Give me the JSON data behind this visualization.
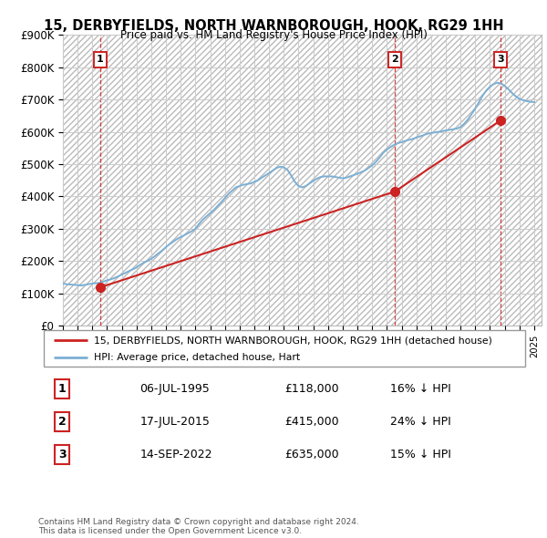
{
  "title": "15, DERBYFIELDS, NORTH WARNBOROUGH, HOOK, RG29 1HH",
  "subtitle": "Price paid vs. HM Land Registry's House Price Index (HPI)",
  "ylim": [
    0,
    900000
  ],
  "yticks": [
    0,
    100000,
    200000,
    300000,
    400000,
    500000,
    600000,
    700000,
    800000,
    900000
  ],
  "ytick_labels": [
    "£0",
    "£100K",
    "£200K",
    "£300K",
    "£400K",
    "£500K",
    "£600K",
    "£700K",
    "£800K",
    "£900K"
  ],
  "xlim_start": 1993.0,
  "xlim_end": 2025.5,
  "sale_dates": [
    1995.51,
    2015.54,
    2022.71
  ],
  "sale_prices": [
    118000,
    415000,
    635000
  ],
  "sale_labels": [
    "1",
    "2",
    "3"
  ],
  "hpi_color": "#7bafd4",
  "price_color": "#cc2222",
  "grid_color": "#cccccc",
  "legend_label_price": "15, DERBYFIELDS, NORTH WARNBOROUGH, HOOK, RG29 1HH (detached house)",
  "legend_label_hpi": "HPI: Average price, detached house, Hart",
  "table_entries": [
    {
      "num": "1",
      "date": "06-JUL-1995",
      "price": "£118,000",
      "note": "16% ↓ HPI"
    },
    {
      "num": "2",
      "date": "17-JUL-2015",
      "price": "£415,000",
      "note": "24% ↓ HPI"
    },
    {
      "num": "3",
      "date": "14-SEP-2022",
      "price": "£635,000",
      "note": "15% ↓ HPI"
    }
  ],
  "footnote": "Contains HM Land Registry data © Crown copyright and database right 2024.\nThis data is licensed under the Open Government Licence v3.0.",
  "hpi_years": [
    1993.0,
    1993.25,
    1993.5,
    1993.75,
    1994.0,
    1994.25,
    1994.5,
    1994.75,
    1995.0,
    1995.25,
    1995.5,
    1995.75,
    1996.0,
    1996.25,
    1996.5,
    1996.75,
    1997.0,
    1997.25,
    1997.5,
    1997.75,
    1998.0,
    1998.25,
    1998.5,
    1998.75,
    1999.0,
    1999.25,
    1999.5,
    1999.75,
    2000.0,
    2000.25,
    2000.5,
    2000.75,
    2001.0,
    2001.25,
    2001.5,
    2001.75,
    2002.0,
    2002.25,
    2002.5,
    2002.75,
    2003.0,
    2003.25,
    2003.5,
    2003.75,
    2004.0,
    2004.25,
    2004.5,
    2004.75,
    2005.0,
    2005.25,
    2005.5,
    2005.75,
    2006.0,
    2006.25,
    2006.5,
    2006.75,
    2007.0,
    2007.25,
    2007.5,
    2007.75,
    2008.0,
    2008.25,
    2008.5,
    2008.75,
    2009.0,
    2009.25,
    2009.5,
    2009.75,
    2010.0,
    2010.25,
    2010.5,
    2010.75,
    2011.0,
    2011.25,
    2011.5,
    2011.75,
    2012.0,
    2012.25,
    2012.5,
    2012.75,
    2013.0,
    2013.25,
    2013.5,
    2013.75,
    2014.0,
    2014.25,
    2014.5,
    2014.75,
    2015.0,
    2015.25,
    2015.5,
    2015.75,
    2016.0,
    2016.25,
    2016.5,
    2016.75,
    2017.0,
    2017.25,
    2017.5,
    2017.75,
    2018.0,
    2018.25,
    2018.5,
    2018.75,
    2019.0,
    2019.25,
    2019.5,
    2019.75,
    2020.0,
    2020.25,
    2020.5,
    2020.75,
    2021.0,
    2021.25,
    2021.5,
    2021.75,
    2022.0,
    2022.25,
    2022.5,
    2022.75,
    2023.0,
    2023.25,
    2023.5,
    2023.75,
    2024.0,
    2024.25,
    2024.5,
    2024.75,
    2025.0
  ],
  "hpi_values": [
    130000,
    128000,
    127000,
    126000,
    125000,
    124000,
    126000,
    128000,
    130000,
    131000,
    132000,
    136000,
    140000,
    143000,
    147000,
    152000,
    158000,
    163000,
    169000,
    174000,
    180000,
    188000,
    195000,
    200000,
    207000,
    215000,
    224000,
    233000,
    243000,
    252000,
    260000,
    268000,
    274000,
    280000,
    286000,
    292000,
    300000,
    315000,
    328000,
    338000,
    348000,
    358000,
    370000,
    382000,
    395000,
    408000,
    418000,
    428000,
    432000,
    436000,
    438000,
    440000,
    445000,
    450000,
    458000,
    465000,
    472000,
    480000,
    488000,
    492000,
    490000,
    482000,
    465000,
    445000,
    432000,
    428000,
    432000,
    440000,
    448000,
    455000,
    460000,
    462000,
    462000,
    462000,
    460000,
    458000,
    456000,
    458000,
    462000,
    466000,
    470000,
    475000,
    480000,
    488000,
    496000,
    507000,
    520000,
    535000,
    545000,
    553000,
    560000,
    565000,
    568000,
    572000,
    575000,
    578000,
    582000,
    586000,
    590000,
    594000,
    596000,
    598000,
    600000,
    602000,
    604000,
    606000,
    608000,
    610000,
    615000,
    625000,
    638000,
    655000,
    672000,
    692000,
    712000,
    728000,
    740000,
    748000,
    752000,
    750000,
    742000,
    732000,
    720000,
    710000,
    702000,
    698000,
    695000,
    693000,
    692000
  ]
}
